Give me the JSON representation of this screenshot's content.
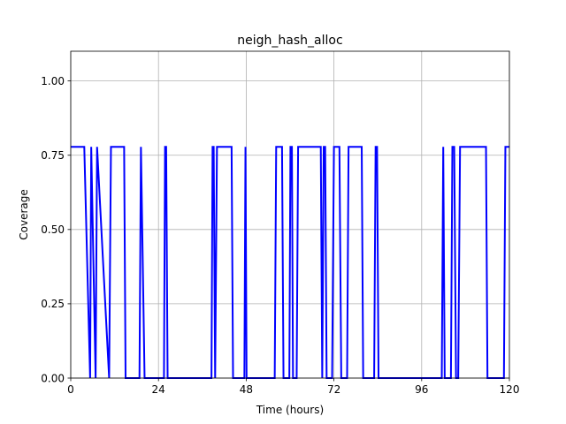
{
  "chart_data": {
    "type": "line",
    "title": "neigh_hash_alloc",
    "xlabel": "Time (hours)",
    "ylabel": "Coverage",
    "xlim": [
      0,
      120
    ],
    "ylim": [
      0,
      1.1
    ],
    "xticks": [
      0,
      24,
      48,
      72,
      96,
      120
    ],
    "yticks": [
      0.0,
      0.25,
      0.5,
      0.75,
      1.0
    ],
    "xtick_labels": [
      "0",
      "24",
      "48",
      "72",
      "96",
      "120"
    ],
    "ytick_labels": [
      "0.00",
      "0.25",
      "0.50",
      "0.75",
      "1.00"
    ],
    "grid": true,
    "series": [
      {
        "color": "#0000ff",
        "x": [
          0,
          3.7,
          5.3,
          5.6,
          6.8,
          7.2,
          10.5,
          11.0,
          14.6,
          15.0,
          18.8,
          19.2,
          20.2,
          25.5,
          25.8,
          26.1,
          26.5,
          38.5,
          38.8,
          39.1,
          39.5,
          40.0,
          40.5,
          44.0,
          44.4,
          47.5,
          47.8,
          48.1,
          55.8,
          56.2,
          57.8,
          58.2,
          59.8,
          60.1,
          60.5,
          60.8,
          61.8,
          62.2,
          68.4,
          68.8,
          69.2,
          69.6,
          70.0,
          70.5,
          71.5,
          72.0,
          73.5,
          74.0,
          75.6,
          76.0,
          79.6,
          80.0,
          83.0,
          83.4,
          83.8,
          84.2,
          101.5,
          101.9,
          102.3,
          104.0,
          104.4,
          104.9,
          105.4,
          106.0,
          106.5,
          113.6,
          114.0,
          118.5,
          118.9,
          120
        ],
        "y": [
          0.778,
          0.778,
          0,
          0.778,
          0,
          0.778,
          0,
          0.778,
          0.778,
          0,
          0,
          0.778,
          0,
          0,
          0.778,
          0.778,
          0,
          0,
          0.778,
          0.778,
          0,
          0.778,
          0.778,
          0.778,
          0,
          0,
          0.778,
          0,
          0,
          0.778,
          0.778,
          0,
          0,
          0.778,
          0.778,
          0,
          0,
          0.778,
          0.778,
          0,
          0.778,
          0.778,
          0,
          0,
          0,
          0.778,
          0.778,
          0,
          0,
          0.778,
          0.778,
          0,
          0,
          0.778,
          0.778,
          0,
          0,
          0.778,
          0,
          0,
          0.778,
          0.778,
          0,
          0,
          0.778,
          0.778,
          0,
          0,
          0.778,
          0.778
        ]
      }
    ]
  }
}
